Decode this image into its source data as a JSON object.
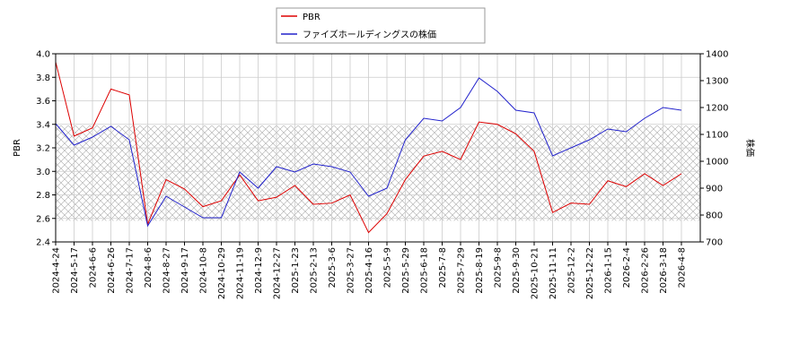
{
  "chart_data": {
    "type": "line",
    "categories": [
      "2024-4-24",
      "2024-5-17",
      "2024-6-6",
      "2024-6-26",
      "2024-7-17",
      "2024-8-6",
      "2024-8-27",
      "2024-9-17",
      "2024-10-8",
      "2024-10-29",
      "2024-11-19",
      "2024-12-9",
      "2024-12-27",
      "2025-1-23",
      "2025-2-13",
      "2025-3-6",
      "2025-3-27",
      "2025-4-16",
      "2025-5-9",
      "2025-5-29",
      "2025-6-18",
      "2025-7-8",
      "2025-7-29",
      "2025-8-19",
      "2025-9-8",
      "2025-9-30",
      "2025-10-21",
      "2025-11-11",
      "2025-12-2",
      "2025-12-22",
      "2026-1-15",
      "2026-2-4",
      "2026-2-26",
      "2026-3-18",
      "2026-4-8"
    ],
    "series": [
      {
        "name": "PBR",
        "color": "#dd0000",
        "values": [
          3.93,
          3.3,
          3.37,
          3.7,
          3.65,
          2.55,
          2.93,
          2.85,
          2.7,
          2.75,
          2.97,
          2.75,
          2.78,
          2.88,
          2.72,
          2.73,
          2.8,
          2.48,
          2.64,
          2.93,
          3.13,
          3.17,
          3.1,
          3.42,
          3.4,
          3.32,
          3.17,
          2.65,
          2.73,
          2.72,
          2.92,
          2.87,
          2.98,
          2.88,
          2.98
        ]
      },
      {
        "name": "ファイズホールディングスの株価",
        "color": "#2222cc",
        "axis": "y2",
        "values": [
          1140,
          1060,
          1090,
          1130,
          1080,
          760,
          870,
          830,
          790,
          790,
          960,
          900,
          980,
          960,
          990,
          980,
          960,
          870,
          900,
          1080,
          1160,
          1150,
          1200,
          1310,
          1260,
          1190,
          1180,
          1020,
          1050,
          1080,
          1120,
          1110,
          1160,
          1200,
          1190
        ]
      }
    ],
    "ylabel": "PBR",
    "y2label": "株価",
    "ylim": [
      2.4,
      4.0
    ],
    "yticks": [
      {
        "value": 2.4,
        "label": "2.4"
      },
      {
        "value": 2.6,
        "label": "2.6"
      },
      {
        "value": 2.8,
        "label": "2.8"
      },
      {
        "value": 3.0,
        "label": "3.0"
      },
      {
        "value": 3.2,
        "label": "3.2"
      },
      {
        "value": 3.4,
        "label": "3.4"
      },
      {
        "value": 3.6,
        "label": "3.6"
      },
      {
        "value": 3.8,
        "label": "3.8"
      },
      {
        "value": 4.0,
        "label": "4.0"
      }
    ],
    "y2lim": [
      700,
      1400
    ],
    "y2ticks": [
      700,
      800,
      900,
      1000,
      1100,
      1200,
      1300,
      1400
    ],
    "hatch_band": [
      2.58,
      3.39
    ],
    "grid": true,
    "legend": "top"
  }
}
